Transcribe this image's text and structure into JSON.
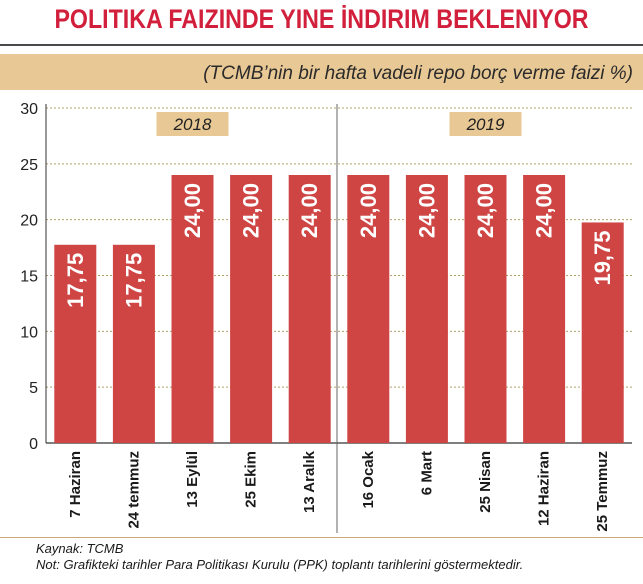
{
  "header": {
    "title": "POLITIKA FAIZINDE YINE İNDIRIM BEKLENIYOR",
    "subtitle": "(TCMB’nin bir hafta vadeli repo borç verme faizi %)"
  },
  "footer": {
    "source": "Kaynak: TCMB",
    "note": "Not: Grafikteki tarihler Para Politikası Kurulu (PPK) toplantı tarihlerini göstermektedir."
  },
  "colors": {
    "bar": "#cf4543",
    "title": "#d21f3c",
    "band": "#e8c895",
    "year_box": "#e8c895",
    "grid": "#b5a06a"
  },
  "chart_data": {
    "type": "bar",
    "categories": [
      "7 Haziran",
      "24 temmuz",
      "13 Eylül",
      "25 Ekim",
      "13 Aralık",
      "16 Ocak",
      "6 Mart",
      "25 Nisan",
      "12 Haziran",
      "25 Temmuz"
    ],
    "values": [
      17.75,
      17.75,
      24.0,
      24.0,
      24.0,
      24.0,
      24.0,
      24.0,
      24.0,
      19.75
    ],
    "value_labels": [
      "17,75",
      "17,75",
      "24,00",
      "24,00",
      "24,00",
      "24,00",
      "24,00",
      "24,00",
      "24,00",
      "19,75"
    ],
    "ylim": [
      0,
      30
    ],
    "yticks": [
      0,
      5,
      10,
      15,
      20,
      25,
      30
    ],
    "grid": true,
    "groups": [
      {
        "label": "2018",
        "from": 0,
        "to": 4
      },
      {
        "label": "2019",
        "from": 5,
        "to": 9
      }
    ]
  }
}
